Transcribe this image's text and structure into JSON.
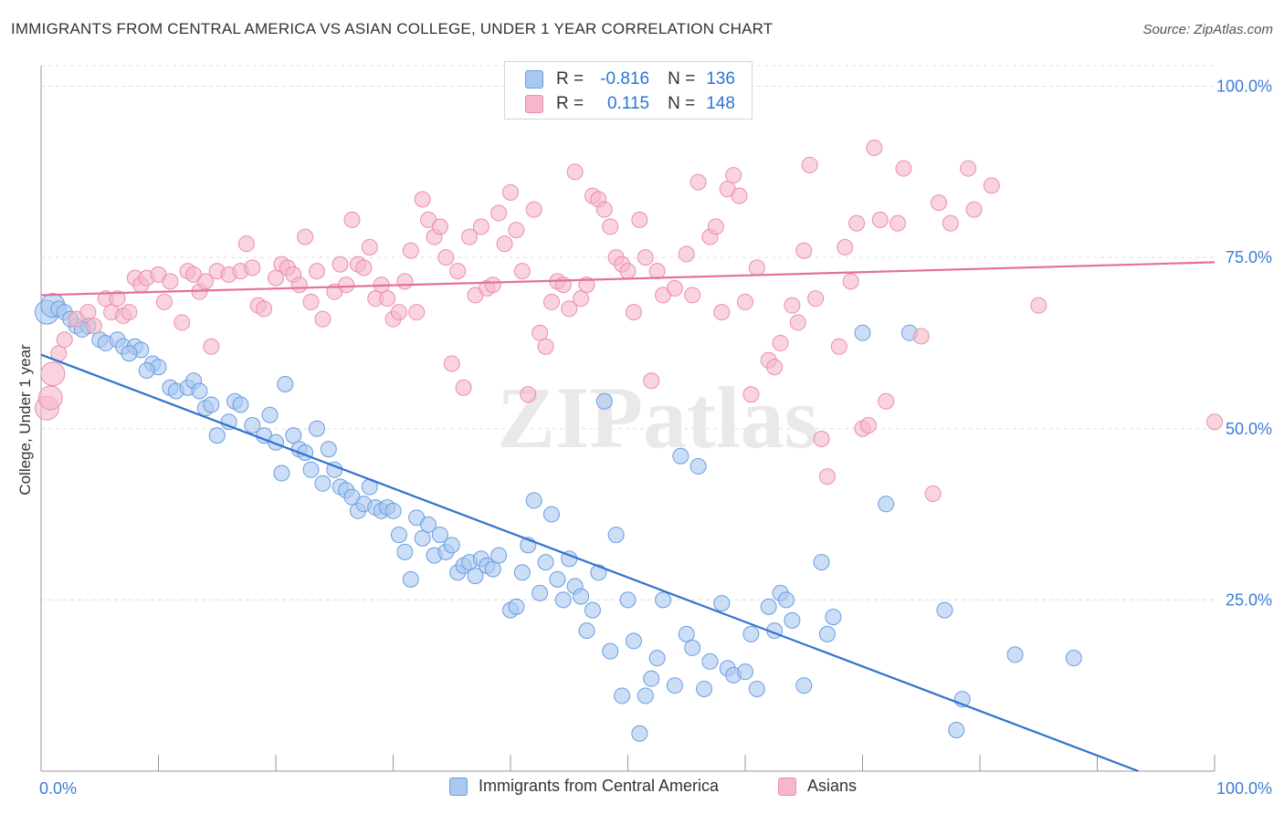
{
  "title": "IMMIGRANTS FROM CENTRAL AMERICA VS ASIAN COLLEGE, UNDER 1 YEAR CORRELATION CHART",
  "source": "Source: ZipAtlas.com",
  "legend": {
    "rows": [
      {
        "r_label": "R =",
        "r_value": "-0.816",
        "n_label": "N =",
        "n_value": "136"
      },
      {
        "r_label": "R =",
        "r_value": "0.115",
        "n_label": "N =",
        "n_value": "148"
      }
    ]
  },
  "bottom_legend": [
    "Immigrants from Central America",
    "Asians"
  ],
  "watermark": "ZIPatlas",
  "colors": {
    "blue_fill": "#a9c8f0",
    "blue_stroke": "#6a9de0",
    "blue_line": "#2f72d2",
    "pink_fill": "#f5b7c9",
    "pink_stroke": "#ec8eaa",
    "pink_line": "#e4709a",
    "tick_text": "#3b7dd8",
    "grid": "#dddddd"
  },
  "chart_data": {
    "type": "scatter",
    "title": "IMMIGRANTS FROM CENTRAL AMERICA VS ASIAN COLLEGE, UNDER 1 YEAR CORRELATION CHART",
    "xlabel": "",
    "ylabel": "College, Under 1 year",
    "xlim": [
      0,
      100
    ],
    "ylim": [
      0,
      103
    ],
    "x_tick_labels": [
      "0.0%",
      "100.0%"
    ],
    "y_tick_labels": [
      "25.0%",
      "50.0%",
      "75.0%",
      "100.0%"
    ],
    "y_ticks": [
      25,
      50,
      75,
      100
    ],
    "grid": true,
    "legend_position": "top-center",
    "series": [
      {
        "name": "Immigrants from Central America",
        "r": -0.816,
        "n": 136,
        "trend": {
          "x": [
            0,
            93.5
          ],
          "y": [
            60.8,
            0
          ]
        },
        "points": [
          [
            0.5,
            67
          ],
          [
            1,
            68
          ],
          [
            1.5,
            67.5
          ],
          [
            2,
            67
          ],
          [
            3,
            65
          ],
          [
            2.5,
            66
          ],
          [
            4,
            65
          ],
          [
            3.5,
            64.5
          ],
          [
            5,
            63
          ],
          [
            5.5,
            62.5
          ],
          [
            6.5,
            63
          ],
          [
            7,
            62
          ],
          [
            8,
            62
          ],
          [
            8.5,
            61.5
          ],
          [
            7.5,
            61
          ],
          [
            9.5,
            59.5
          ],
          [
            10,
            59
          ],
          [
            9,
            58.5
          ],
          [
            11,
            56
          ],
          [
            11.5,
            55.5
          ],
          [
            12.5,
            56
          ],
          [
            13,
            57
          ],
          [
            13.5,
            55.5
          ],
          [
            14,
            53
          ],
          [
            14.5,
            53.5
          ],
          [
            15,
            49
          ],
          [
            16,
            51
          ],
          [
            16.5,
            54
          ],
          [
            17,
            53.5
          ],
          [
            18,
            50.5
          ],
          [
            19,
            49
          ],
          [
            19.5,
            52
          ],
          [
            20,
            48
          ],
          [
            20.5,
            43.5
          ],
          [
            20.8,
            56.5
          ],
          [
            21.5,
            49
          ],
          [
            22,
            47
          ],
          [
            22.5,
            46.5
          ],
          [
            23,
            44
          ],
          [
            23.5,
            50
          ],
          [
            24,
            42
          ],
          [
            24.5,
            47
          ],
          [
            25,
            44
          ],
          [
            25.5,
            41.5
          ],
          [
            26,
            41
          ],
          [
            26.5,
            40
          ],
          [
            27,
            38
          ],
          [
            27.5,
            39
          ],
          [
            28,
            41.5
          ],
          [
            28.5,
            38.5
          ],
          [
            29,
            38
          ],
          [
            29.5,
            38.5
          ],
          [
            30,
            38
          ],
          [
            30.5,
            34.5
          ],
          [
            31,
            32
          ],
          [
            31.5,
            28
          ],
          [
            32,
            37
          ],
          [
            32.5,
            34
          ],
          [
            33,
            36
          ],
          [
            33.5,
            31.5
          ],
          [
            34,
            34.5
          ],
          [
            34.5,
            32
          ],
          [
            35,
            33
          ],
          [
            35.5,
            29
          ],
          [
            36,
            30
          ],
          [
            36.5,
            30.5
          ],
          [
            37,
            28.5
          ],
          [
            37.5,
            31
          ],
          [
            38,
            30
          ],
          [
            38.5,
            29.5
          ],
          [
            39,
            31.5
          ],
          [
            40,
            23.5
          ],
          [
            40.5,
            24
          ],
          [
            41,
            29
          ],
          [
            41.5,
            33
          ],
          [
            42,
            39.5
          ],
          [
            42.5,
            26
          ],
          [
            43,
            30.5
          ],
          [
            43.5,
            37.5
          ],
          [
            44,
            28
          ],
          [
            44.5,
            25
          ],
          [
            45,
            31
          ],
          [
            45.5,
            27
          ],
          [
            46,
            25.5
          ],
          [
            46.5,
            20.5
          ],
          [
            47,
            23.5
          ],
          [
            47.5,
            29
          ],
          [
            48,
            54
          ],
          [
            48.5,
            17.5
          ],
          [
            49,
            34.5
          ],
          [
            49.5,
            11
          ],
          [
            50,
            25
          ],
          [
            50.5,
            19
          ],
          [
            51,
            5.5
          ],
          [
            51.5,
            11
          ],
          [
            52,
            13.5
          ],
          [
            52.5,
            16.5
          ],
          [
            53,
            25
          ],
          [
            54,
            12.5
          ],
          [
            54.5,
            46
          ],
          [
            55,
            20
          ],
          [
            55.5,
            18
          ],
          [
            56,
            44.5
          ],
          [
            56.5,
            12
          ],
          [
            57,
            16
          ],
          [
            58,
            24.5
          ],
          [
            58.5,
            15
          ],
          [
            59,
            14
          ],
          [
            60,
            14.5
          ],
          [
            60.5,
            20
          ],
          [
            61,
            12
          ],
          [
            62,
            24
          ],
          [
            62.5,
            20.5
          ],
          [
            63,
            26
          ],
          [
            63.5,
            25
          ],
          [
            64,
            22
          ],
          [
            65,
            12.5
          ],
          [
            66.5,
            30.5
          ],
          [
            67,
            20
          ],
          [
            67.5,
            22.5
          ],
          [
            70,
            64
          ],
          [
            72,
            39
          ],
          [
            74,
            64
          ],
          [
            77,
            23.5
          ],
          [
            78,
            6
          ],
          [
            78.5,
            10.5
          ],
          [
            83,
            17
          ],
          [
            88,
            16.5
          ]
        ]
      },
      {
        "name": "Asians",
        "r": 0.115,
        "n": 148,
        "trend": {
          "x": [
            0,
            100
          ],
          "y": [
            69.5,
            74.3
          ]
        },
        "points": [
          [
            0.5,
            53
          ],
          [
            0.8,
            54.5
          ],
          [
            1,
            58
          ],
          [
            1.5,
            61
          ],
          [
            2,
            63
          ],
          [
            3,
            66
          ],
          [
            4,
            67
          ],
          [
            4.5,
            65
          ],
          [
            5.5,
            69
          ],
          [
            6,
            67
          ],
          [
            6.5,
            69
          ],
          [
            7,
            66.5
          ],
          [
            7.5,
            67
          ],
          [
            8,
            72
          ],
          [
            8.5,
            71
          ],
          [
            9,
            72
          ],
          [
            10,
            72.5
          ],
          [
            10.5,
            68.5
          ],
          [
            11,
            71.5
          ],
          [
            12,
            65.5
          ],
          [
            12.5,
            73
          ],
          [
            13,
            72.5
          ],
          [
            13.5,
            70
          ],
          [
            14,
            71.5
          ],
          [
            14.5,
            62
          ],
          [
            15,
            73
          ],
          [
            16,
            72.5
          ],
          [
            17,
            73
          ],
          [
            17.5,
            77
          ],
          [
            18,
            73.5
          ],
          [
            18.5,
            68
          ],
          [
            19,
            67.5
          ],
          [
            20,
            72
          ],
          [
            20.5,
            74
          ],
          [
            21,
            73.5
          ],
          [
            21.5,
            72.5
          ],
          [
            22,
            71
          ],
          [
            22.5,
            78
          ],
          [
            23,
            68.5
          ],
          [
            23.5,
            73
          ],
          [
            24,
            66
          ],
          [
            25,
            70
          ],
          [
            25.5,
            74
          ],
          [
            26,
            71
          ],
          [
            26.5,
            80.5
          ],
          [
            27,
            74
          ],
          [
            27.5,
            73.5
          ],
          [
            28,
            76.5
          ],
          [
            28.5,
            69
          ],
          [
            29,
            71
          ],
          [
            29.5,
            69
          ],
          [
            30,
            66
          ],
          [
            30.5,
            67
          ],
          [
            31,
            71.5
          ],
          [
            31.5,
            76
          ],
          [
            32,
            67
          ],
          [
            32.5,
            83.5
          ],
          [
            33,
            80.5
          ],
          [
            33.5,
            78
          ],
          [
            34,
            79.5
          ],
          [
            34.5,
            75
          ],
          [
            35,
            59.5
          ],
          [
            35.5,
            73
          ],
          [
            36,
            56
          ],
          [
            36.5,
            78
          ],
          [
            37,
            69.5
          ],
          [
            37.5,
            79.5
          ],
          [
            38,
            70.5
          ],
          [
            38.5,
            71
          ],
          [
            39,
            81.5
          ],
          [
            39.5,
            77
          ],
          [
            40,
            84.5
          ],
          [
            40.5,
            79
          ],
          [
            41,
            73
          ],
          [
            41.5,
            55
          ],
          [
            42,
            82
          ],
          [
            42.5,
            64
          ],
          [
            43,
            62
          ],
          [
            43.5,
            68.5
          ],
          [
            44,
            71.5
          ],
          [
            44.5,
            71
          ],
          [
            45,
            67.5
          ],
          [
            45.5,
            87.5
          ],
          [
            46,
            69
          ],
          [
            46.5,
            71
          ],
          [
            47,
            84
          ],
          [
            47.5,
            83.5
          ],
          [
            48,
            82
          ],
          [
            48.5,
            79.5
          ],
          [
            49,
            75
          ],
          [
            49.5,
            74
          ],
          [
            50,
            73
          ],
          [
            50.5,
            67
          ],
          [
            51,
            80.5
          ],
          [
            51.5,
            75
          ],
          [
            52,
            57
          ],
          [
            52.5,
            73
          ],
          [
            53,
            69.5
          ],
          [
            54,
            70.5
          ],
          [
            55,
            75.5
          ],
          [
            55.5,
            69.5
          ],
          [
            56,
            86
          ],
          [
            57,
            78
          ],
          [
            57.5,
            79.5
          ],
          [
            58,
            67
          ],
          [
            58.5,
            85
          ],
          [
            59,
            87
          ],
          [
            59.5,
            84
          ],
          [
            60,
            68.5
          ],
          [
            60.5,
            55
          ],
          [
            61,
            73.5
          ],
          [
            62,
            60
          ],
          [
            62.5,
            59
          ],
          [
            63,
            62.5
          ],
          [
            64,
            68
          ],
          [
            64.5,
            65.5
          ],
          [
            65,
            76
          ],
          [
            65.5,
            88.5
          ],
          [
            66,
            69
          ],
          [
            66.5,
            48.5
          ],
          [
            67,
            43
          ],
          [
            68,
            62
          ],
          [
            68.5,
            76.5
          ],
          [
            69,
            71.5
          ],
          [
            69.5,
            80
          ],
          [
            70,
            50
          ],
          [
            70.5,
            50.5
          ],
          [
            71,
            91
          ],
          [
            71.5,
            80.5
          ],
          [
            72,
            54
          ],
          [
            73,
            80
          ],
          [
            73.5,
            88
          ],
          [
            75,
            63.5
          ],
          [
            76,
            40.5
          ],
          [
            76.5,
            83
          ],
          [
            77.5,
            80
          ],
          [
            79,
            88
          ],
          [
            79.5,
            82
          ],
          [
            81,
            85.5
          ],
          [
            85,
            68
          ],
          [
            100,
            51
          ]
        ]
      }
    ]
  }
}
